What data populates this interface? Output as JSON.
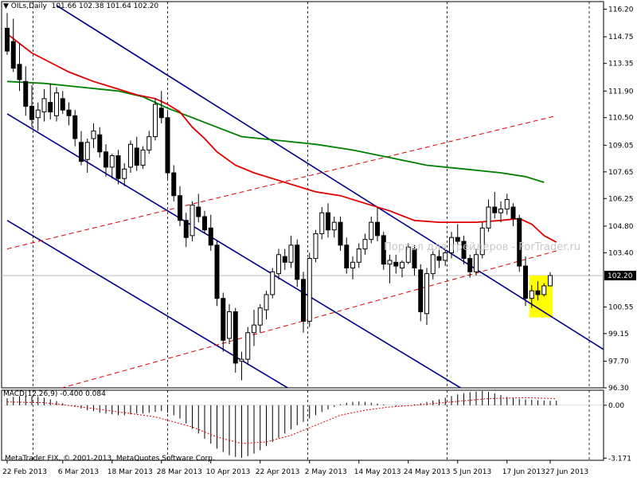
{
  "header": {
    "symbol": "OILs,Daily",
    "ohlc": "101.66 102.38 101.64 102.20",
    "macd_label": "MACD(12,26,9) -0.400 0.084",
    "copyright": "MetaTrader FIX, © 2001-2013, MetaQuotes Software Corp.",
    "watermark": "Портал для трейдеров - ForTrader.ru"
  },
  "price_axis": {
    "ticks": [
      "116.20",
      "114.75",
      "113.35",
      "111.90",
      "110.50",
      "109.05",
      "107.65",
      "106.25",
      "104.80",
      "103.40",
      "102.20",
      "100.55",
      "99.15",
      "97.70",
      "96.30"
    ],
    "current": "102.20"
  },
  "macd_axis": {
    "ticks": [
      "0.00",
      "-3.171"
    ]
  },
  "date_axis": {
    "labels": [
      "22 Feb 2013",
      "6 Mar 2013",
      "18 Mar 2013",
      "28 Mar 2013",
      "10 Apr 2013",
      "22 Apr 2013",
      "2 May 2013",
      "14 May 2013",
      "24 May 2013",
      "5 Jun 2013",
      "17 Jun 2013",
      "27 Jun 2013"
    ]
  },
  "colors": {
    "channel": "#00008b",
    "ma_fast": "#e00000",
    "ma_slow": "#008000",
    "trend_dashed": "#e00000",
    "highlight": "#ffff00",
    "candle": "#000000"
  },
  "chart_data": {
    "type": "candlestick",
    "symbol": "OILs",
    "timeframe": "Daily",
    "ylim": [
      96.3,
      116.6
    ],
    "last": {
      "open": 101.66,
      "high": 102.38,
      "low": 101.64,
      "close": 102.2
    },
    "candles": [
      {
        "date": "22 Feb",
        "open": 115.2,
        "high": 116.0,
        "low": 113.8,
        "close": 114.0
      },
      {
        "date": "25 Feb",
        "open": 114.5,
        "high": 115.7,
        "low": 112.9,
        "close": 113.1
      },
      {
        "date": "26 Feb",
        "open": 113.3,
        "high": 114.4,
        "low": 111.9,
        "close": 112.5
      },
      {
        "date": "27 Feb",
        "open": 112.4,
        "high": 113.2,
        "low": 110.6,
        "close": 111.1
      },
      {
        "date": "28 Feb",
        "open": 111.1,
        "high": 112.2,
        "low": 110.0,
        "close": 110.4
      },
      {
        "date": "1 Mar",
        "open": 110.5,
        "high": 111.3,
        "low": 109.8,
        "close": 110.9
      },
      {
        "date": "4 Mar",
        "open": 110.8,
        "high": 112.0,
        "low": 110.3,
        "close": 111.5
      },
      {
        "date": "5 Mar",
        "open": 111.3,
        "high": 112.3,
        "low": 110.4,
        "close": 110.8
      },
      {
        "date": "6 Mar",
        "open": 110.6,
        "high": 112.1,
        "low": 110.3,
        "close": 111.8
      },
      {
        "date": "7 Mar",
        "open": 111.5,
        "high": 111.9,
        "low": 110.7,
        "close": 110.9
      },
      {
        "date": "8 Mar",
        "open": 110.9,
        "high": 111.3,
        "low": 110.1,
        "close": 110.6
      },
      {
        "date": "11 Mar",
        "open": 110.6,
        "high": 110.9,
        "low": 109.0,
        "close": 109.4
      },
      {
        "date": "12 Mar",
        "open": 109.2,
        "high": 109.8,
        "low": 108.0,
        "close": 108.2
      },
      {
        "date": "13 Mar",
        "open": 108.3,
        "high": 109.4,
        "low": 107.6,
        "close": 109.2
      },
      {
        "date": "14 Mar",
        "open": 109.4,
        "high": 110.2,
        "low": 108.9,
        "close": 109.8
      },
      {
        "date": "15 Mar",
        "open": 109.6,
        "high": 110.0,
        "low": 108.4,
        "close": 108.7
      },
      {
        "date": "18 Mar",
        "open": 108.7,
        "high": 109.1,
        "low": 107.4,
        "close": 107.9
      },
      {
        "date": "19 Mar",
        "open": 107.9,
        "high": 108.6,
        "low": 107.3,
        "close": 108.5
      },
      {
        "date": "20 Mar",
        "open": 108.5,
        "high": 108.8,
        "low": 107.0,
        "close": 107.3
      },
      {
        "date": "21 Mar",
        "open": 107.3,
        "high": 108.1,
        "low": 106.9,
        "close": 107.8
      },
      {
        "date": "22 Mar",
        "open": 107.9,
        "high": 109.3,
        "low": 107.6,
        "close": 109.1
      },
      {
        "date": "25 Mar",
        "open": 108.9,
        "high": 109.5,
        "low": 107.7,
        "close": 108.0
      },
      {
        "date": "26 Mar",
        "open": 108.0,
        "high": 109.0,
        "low": 107.8,
        "close": 108.8
      },
      {
        "date": "27 Mar",
        "open": 108.8,
        "high": 109.8,
        "low": 108.6,
        "close": 109.5
      },
      {
        "date": "28 Mar",
        "open": 109.5,
        "high": 111.5,
        "low": 109.3,
        "close": 111.2
      },
      {
        "date": "1 Apr",
        "open": 111.0,
        "high": 111.9,
        "low": 110.2,
        "close": 110.5
      },
      {
        "date": "2 Apr",
        "open": 110.5,
        "high": 110.9,
        "low": 107.3,
        "close": 107.6
      },
      {
        "date": "3 Apr",
        "open": 107.6,
        "high": 108.0,
        "low": 106.1,
        "close": 106.4
      },
      {
        "date": "4 Apr",
        "open": 106.4,
        "high": 106.9,
        "low": 104.8,
        "close": 105.1
      },
      {
        "date": "5 Apr",
        "open": 105.1,
        "high": 105.5,
        "low": 103.7,
        "close": 104.2
      },
      {
        "date": "8 Apr",
        "open": 104.3,
        "high": 106.1,
        "low": 104.0,
        "close": 105.9
      },
      {
        "date": "9 Apr",
        "open": 105.8,
        "high": 106.5,
        "low": 105.0,
        "close": 105.3
      },
      {
        "date": "10 Apr",
        "open": 105.3,
        "high": 105.6,
        "low": 104.4,
        "close": 104.6
      },
      {
        "date": "11 Apr",
        "open": 104.7,
        "high": 105.4,
        "low": 103.5,
        "close": 103.8
      },
      {
        "date": "12 Apr",
        "open": 103.8,
        "high": 104.0,
        "low": 100.6,
        "close": 101.0
      },
      {
        "date": "15 Apr",
        "open": 101.0,
        "high": 101.3,
        "low": 98.2,
        "close": 98.8
      },
      {
        "date": "16 Apr",
        "open": 98.9,
        "high": 100.7,
        "low": 98.6,
        "close": 100.3
      },
      {
        "date": "17 Apr",
        "open": 100.3,
        "high": 100.5,
        "low": 97.1,
        "close": 97.6
      },
      {
        "date": "18 Apr",
        "open": 97.7,
        "high": 98.2,
        "low": 96.7,
        "close": 97.8
      },
      {
        "date": "19 Apr",
        "open": 97.8,
        "high": 99.5,
        "low": 97.5,
        "close": 99.2
      },
      {
        "date": "22 Apr",
        "open": 99.2,
        "high": 100.4,
        "low": 98.5,
        "close": 99.6
      },
      {
        "date": "23 Apr",
        "open": 99.6,
        "high": 100.7,
        "low": 99.2,
        "close": 100.5
      },
      {
        "date": "24 Apr",
        "open": 100.4,
        "high": 101.4,
        "low": 99.9,
        "close": 101.2
      },
      {
        "date": "25 Apr",
        "open": 101.2,
        "high": 102.6,
        "low": 101.0,
        "close": 102.4
      },
      {
        "date": "26 Apr",
        "open": 102.3,
        "high": 103.6,
        "low": 102.0,
        "close": 103.3
      },
      {
        "date": "29 Apr",
        "open": 103.2,
        "high": 103.6,
        "low": 102.5,
        "close": 102.9
      },
      {
        "date": "30 Apr",
        "open": 102.9,
        "high": 104.3,
        "low": 102.6,
        "close": 103.8
      },
      {
        "date": "1 May",
        "open": 103.8,
        "high": 104.1,
        "low": 101.6,
        "close": 102.0
      },
      {
        "date": "2 May",
        "open": 102.0,
        "high": 102.4,
        "low": 99.2,
        "close": 99.8
      },
      {
        "date": "3 May",
        "open": 99.8,
        "high": 103.4,
        "low": 99.5,
        "close": 103.1
      },
      {
        "date": "6 May",
        "open": 103.1,
        "high": 104.6,
        "low": 102.9,
        "close": 104.4
      },
      {
        "date": "7 May",
        "open": 104.4,
        "high": 105.8,
        "low": 104.1,
        "close": 105.5
      },
      {
        "date": "8 May",
        "open": 105.5,
        "high": 106.0,
        "low": 104.2,
        "close": 104.6
      },
      {
        "date": "9 May",
        "open": 104.6,
        "high": 105.3,
        "low": 104.2,
        "close": 105.0
      },
      {
        "date": "10 May",
        "open": 105.0,
        "high": 105.3,
        "low": 103.5,
        "close": 103.8
      },
      {
        "date": "13 May",
        "open": 103.8,
        "high": 104.2,
        "low": 102.3,
        "close": 102.6
      },
      {
        "date": "14 May",
        "open": 102.6,
        "high": 103.2,
        "low": 102.0,
        "close": 102.9
      },
      {
        "date": "15 May",
        "open": 102.9,
        "high": 103.9,
        "low": 102.6,
        "close": 103.6
      },
      {
        "date": "16 May",
        "open": 103.6,
        "high": 104.4,
        "low": 103.3,
        "close": 104.1
      },
      {
        "date": "17 May",
        "open": 104.1,
        "high": 105.3,
        "low": 103.9,
        "close": 105.0
      },
      {
        "date": "20 May",
        "open": 105.0,
        "high": 105.8,
        "low": 104.0,
        "close": 104.3
      },
      {
        "date": "21 May",
        "open": 104.3,
        "high": 104.5,
        "low": 102.5,
        "close": 102.8
      },
      {
        "date": "22 May",
        "open": 102.8,
        "high": 103.3,
        "low": 101.8,
        "close": 103.0
      },
      {
        "date": "23 May",
        "open": 102.9,
        "high": 103.3,
        "low": 102.3,
        "close": 102.7
      },
      {
        "date": "24 May",
        "open": 102.6,
        "high": 103.0,
        "low": 102.1,
        "close": 102.9
      },
      {
        "date": "28 May",
        "open": 102.9,
        "high": 103.9,
        "low": 102.8,
        "close": 103.7
      },
      {
        "date": "29 May",
        "open": 103.6,
        "high": 103.8,
        "low": 102.2,
        "close": 102.6
      },
      {
        "date": "30 May",
        "open": 102.5,
        "high": 102.8,
        "low": 99.8,
        "close": 100.3
      },
      {
        "date": "31 May",
        "open": 100.2,
        "high": 102.6,
        "low": 99.6,
        "close": 102.3
      },
      {
        "date": "3 Jun",
        "open": 102.3,
        "high": 103.6,
        "low": 102.0,
        "close": 103.3
      },
      {
        "date": "4 Jun",
        "open": 103.2,
        "high": 103.8,
        "low": 102.6,
        "close": 103.0
      },
      {
        "date": "5 Jun",
        "open": 103.0,
        "high": 103.7,
        "low": 102.7,
        "close": 103.4
      },
      {
        "date": "6 Jun",
        "open": 103.4,
        "high": 104.5,
        "low": 103.1,
        "close": 104.2
      },
      {
        "date": "7 Jun",
        "open": 104.2,
        "high": 104.9,
        "low": 103.8,
        "close": 104.0
      },
      {
        "date": "10 Jun",
        "open": 104.0,
        "high": 104.3,
        "low": 102.8,
        "close": 103.1
      },
      {
        "date": "11 Jun",
        "open": 103.1,
        "high": 103.3,
        "low": 102.1,
        "close": 102.4
      },
      {
        "date": "12 Jun",
        "open": 102.4,
        "high": 103.6,
        "low": 102.2,
        "close": 103.3
      },
      {
        "date": "13 Jun",
        "open": 103.3,
        "high": 105.0,
        "low": 103.1,
        "close": 104.7
      },
      {
        "date": "14 Jun",
        "open": 104.7,
        "high": 106.2,
        "low": 104.5,
        "close": 105.8
      },
      {
        "date": "17 Jun",
        "open": 105.8,
        "high": 106.6,
        "low": 105.2,
        "close": 105.5
      },
      {
        "date": "18 Jun",
        "open": 105.5,
        "high": 106.1,
        "low": 105.0,
        "close": 105.7
      },
      {
        "date": "19 Jun",
        "open": 105.7,
        "high": 106.5,
        "low": 105.4,
        "close": 106.2
      },
      {
        "date": "20 Jun",
        "open": 105.8,
        "high": 106.0,
        "low": 104.8,
        "close": 105.2
      },
      {
        "date": "21 Jun",
        "open": 105.2,
        "high": 105.4,
        "low": 102.4,
        "close": 102.7
      },
      {
        "date": "24 Jun",
        "open": 102.7,
        "high": 103.2,
        "low": 100.6,
        "close": 101.0
      },
      {
        "date": "25 Jun",
        "open": 101.0,
        "high": 101.7,
        "low": 100.5,
        "close": 101.4
      },
      {
        "date": "26 Jun",
        "open": 101.4,
        "high": 101.9,
        "low": 100.9,
        "close": 101.2
      },
      {
        "date": "27 Jun",
        "open": 101.2,
        "high": 101.8,
        "low": 101.1,
        "close": 101.66
      },
      {
        "date": "28 Jun",
        "open": 101.66,
        "high": 102.38,
        "low": 101.64,
        "close": 102.2
      }
    ],
    "ma_fast": [
      [
        0,
        114.9
      ],
      [
        2,
        114.4
      ],
      [
        4,
        113.9
      ],
      [
        7,
        113.4
      ],
      [
        10,
        112.9
      ],
      [
        14,
        112.4
      ],
      [
        18,
        112.0
      ],
      [
        21,
        111.7
      ],
      [
        24,
        111.5
      ],
      [
        26,
        111.2
      ],
      [
        28,
        110.8
      ],
      [
        30,
        110.0
      ],
      [
        32,
        109.4
      ],
      [
        34,
        108.7
      ],
      [
        37,
        108.0
      ],
      [
        40,
        107.6
      ],
      [
        43,
        107.3
      ],
      [
        46,
        107.0
      ],
      [
        50,
        106.6
      ],
      [
        54,
        106.4
      ],
      [
        58,
        106.0
      ],
      [
        62,
        105.6
      ],
      [
        66,
        105.1
      ],
      [
        70,
        105.0
      ],
      [
        73,
        105.0
      ],
      [
        76,
        105.0
      ],
      [
        80,
        105.1
      ],
      [
        83,
        105.2
      ],
      [
        85,
        104.9
      ],
      [
        87,
        104.3
      ],
      [
        89,
        103.95
      ]
    ],
    "ma_slow": [
      [
        0,
        112.4
      ],
      [
        6,
        112.3
      ],
      [
        12,
        112.1
      ],
      [
        18,
        111.9
      ],
      [
        22,
        111.6
      ],
      [
        26,
        111.0
      ],
      [
        30,
        110.5
      ],
      [
        34,
        110.0
      ],
      [
        38,
        109.5
      ],
      [
        44,
        109.3
      ],
      [
        50,
        109.1
      ],
      [
        56,
        108.8
      ],
      [
        62,
        108.4
      ],
      [
        68,
        108.0
      ],
      [
        74,
        107.8
      ],
      [
        80,
        107.6
      ],
      [
        84,
        107.4
      ],
      [
        87,
        107.1
      ]
    ],
    "channel_upper": [
      [
        8,
        116.4
      ],
      [
        108,
        96.0
      ]
    ],
    "channel_lower": [
      [
        0,
        110.7
      ],
      [
        75,
        96.0
      ]
    ],
    "channel_outer": [
      [
        0,
        105.1
      ],
      [
        47,
        96.0
      ]
    ],
    "trend_dashed": [
      [
        0,
        95.5
      ],
      [
        89,
        103.5
      ]
    ],
    "trend_dashed_top": [
      [
        0,
        103.6
      ],
      [
        89,
        110.6
      ]
    ],
    "highlight_box": {
      "from": 85,
      "to": 88,
      "high": 102.2,
      "low": 100.0
    },
    "macd_hist": [
      0.42,
      0.5,
      0.55,
      0.58,
      0.55,
      0.5,
      0.45,
      0.35,
      0.25,
      0.12,
      0.0,
      -0.1,
      -0.2,
      -0.3,
      -0.35,
      -0.45,
      -0.5,
      -0.55,
      -0.6,
      -0.6,
      -0.55,
      -0.5,
      -0.5,
      -0.45,
      -0.4,
      -0.35,
      -0.45,
      -0.6,
      -0.8,
      -1.1,
      -1.4,
      -1.7,
      -2.0,
      -2.3,
      -2.6,
      -2.8,
      -3.0,
      -3.1,
      -3.15,
      -3.05,
      -2.9,
      -2.7,
      -2.45,
      -2.2,
      -1.95,
      -1.7,
      -1.45,
      -1.2,
      -1.0,
      -0.8,
      -0.6,
      -0.4,
      -0.25,
      -0.1,
      0.05,
      0.15,
      0.2,
      0.22,
      0.2,
      0.15,
      0.1,
      0.05,
      0.0,
      -0.05,
      -0.05,
      -0.02,
      0.05,
      0.12,
      0.2,
      0.28,
      0.35,
      0.45,
      0.55,
      0.65,
      0.72,
      0.78,
      0.82,
      0.85,
      0.8,
      0.72,
      0.62,
      0.5,
      0.42,
      0.38,
      0.35,
      0.33,
      0.3,
      0.28,
      0.27,
      0.27
    ],
    "macd_signal": [
      [
        0,
        0.2
      ],
      [
        6,
        0.15
      ],
      [
        12,
        -0.1
      ],
      [
        18,
        -0.4
      ],
      [
        24,
        -0.7
      ],
      [
        30,
        -1.3
      ],
      [
        34,
        -1.9
      ],
      [
        38,
        -2.3
      ],
      [
        42,
        -2.2
      ],
      [
        46,
        -1.8
      ],
      [
        50,
        -1.2
      ],
      [
        54,
        -0.6
      ],
      [
        58,
        -0.3
      ],
      [
        62,
        -0.1
      ],
      [
        66,
        0.0
      ],
      [
        72,
        0.2
      ],
      [
        78,
        0.4
      ],
      [
        84,
        0.45
      ],
      [
        89,
        0.4
      ]
    ],
    "macd_ylim": [
      -3.3,
      0.9
    ]
  }
}
